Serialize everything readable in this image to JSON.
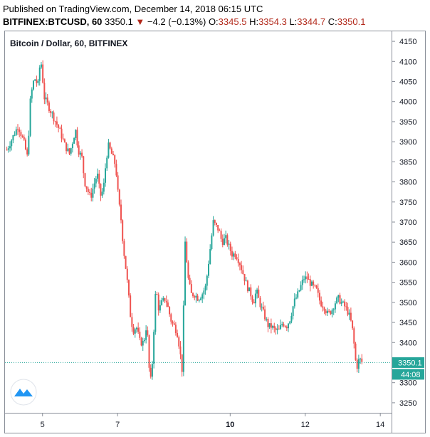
{
  "header": {
    "published": "Published on TradingView.com, December 14, 2018 06:15 UTC",
    "symbol": "BITFINEX:BTCUSD, 60",
    "last": "3350.1",
    "change": "−4.2 (−0.13%)",
    "open_label": "O:",
    "open": "3345.5",
    "high_label": "H:",
    "high": "3354.3",
    "low_label": "L:",
    "low": "3344.7",
    "close_label": "C:",
    "close": "3350.1"
  },
  "pane_title": "Bitcoin / Dollar, 60, BITFINEX",
  "price_badge": "3350.1",
  "countdown_badge": "44:08",
  "icons": {
    "logo": "tradingview-logo-icon",
    "change_arrow": "down-triangle-icon"
  },
  "colors": {
    "up": "#26a69a",
    "down": "#ef5350",
    "last_line": "#26a69a",
    "axis_text": "#131722"
  },
  "chart_data": {
    "type": "candlestick",
    "title": "Bitcoin / Dollar, 60, BITFINEX",
    "x_ticks": [
      {
        "label": "5",
        "day": 5
      },
      {
        "label": "7",
        "day": 7
      },
      {
        "label": "10",
        "day": 10
      },
      {
        "label": "12",
        "day": 12
      },
      {
        "label": "14",
        "day": 14
      }
    ],
    "y_ticks": [
      3250,
      3300,
      3350,
      3400,
      3450,
      3500,
      3550,
      3600,
      3650,
      3700,
      3750,
      3800,
      3850,
      3900,
      3950,
      4000,
      4050,
      4100,
      4150
    ],
    "ylim": [
      3225,
      4175
    ],
    "xlim": [
      4.0,
      14.3
    ],
    "last_price": 3350.1,
    "path": [
      [
        4.05,
        3880
      ],
      [
        4.2,
        3910
      ],
      [
        4.35,
        3940
      ],
      [
        4.5,
        3900
      ],
      [
        4.6,
        3860
      ],
      [
        4.68,
        4010
      ],
      [
        4.78,
        4060
      ],
      [
        4.88,
        4040
      ],
      [
        4.95,
        4110
      ],
      [
        5.05,
        4010
      ],
      [
        5.15,
        3990
      ],
      [
        5.3,
        3960
      ],
      [
        5.45,
        3930
      ],
      [
        5.6,
        3890
      ],
      [
        5.72,
        3870
      ],
      [
        5.8,
        3900
      ],
      [
        5.88,
        3930
      ],
      [
        5.95,
        3880
      ],
      [
        6.05,
        3860
      ],
      [
        6.12,
        3800
      ],
      [
        6.2,
        3780
      ],
      [
        6.28,
        3760
      ],
      [
        6.36,
        3790
      ],
      [
        6.46,
        3820
      ],
      [
        6.54,
        3765
      ],
      [
        6.62,
        3780
      ],
      [
        6.7,
        3860
      ],
      [
        6.76,
        3890
      ],
      [
        6.84,
        3870
      ],
      [
        6.95,
        3840
      ],
      [
        7.02,
        3760
      ],
      [
        7.1,
        3700
      ],
      [
        7.15,
        3640
      ],
      [
        7.25,
        3560
      ],
      [
        7.35,
        3460
      ],
      [
        7.42,
        3430
      ],
      [
        7.5,
        3440
      ],
      [
        7.6,
        3400
      ],
      [
        7.7,
        3400
      ],
      [
        7.78,
        3450
      ],
      [
        7.85,
        3320
      ],
      [
        7.9,
        3300
      ],
      [
        7.96,
        3420
      ],
      [
        8.02,
        3540
      ],
      [
        8.1,
        3480
      ],
      [
        8.18,
        3500
      ],
      [
        8.28,
        3510
      ],
      [
        8.36,
        3480
      ],
      [
        8.44,
        3450
      ],
      [
        8.52,
        3440
      ],
      [
        8.6,
        3420
      ],
      [
        8.66,
        3380
      ],
      [
        8.72,
        3330
      ],
      [
        8.8,
        3650
      ],
      [
        8.88,
        3560
      ],
      [
        8.96,
        3520
      ],
      [
        9.05,
        3520
      ],
      [
        9.15,
        3510
      ],
      [
        9.25,
        3520
      ],
      [
        9.35,
        3540
      ],
      [
        9.45,
        3620
      ],
      [
        9.55,
        3700
      ],
      [
        9.62,
        3690
      ],
      [
        9.7,
        3680
      ],
      [
        9.78,
        3650
      ],
      [
        9.88,
        3660
      ],
      [
        9.96,
        3640
      ],
      [
        10.05,
        3620
      ],
      [
        10.15,
        3620
      ],
      [
        10.25,
        3600
      ],
      [
        10.35,
        3570
      ],
      [
        10.45,
        3540
      ],
      [
        10.55,
        3520
      ],
      [
        10.62,
        3500
      ],
      [
        10.7,
        3530
      ],
      [
        10.78,
        3500
      ],
      [
        10.86,
        3480
      ],
      [
        10.94,
        3460
      ],
      [
        11.02,
        3440
      ],
      [
        11.1,
        3440
      ],
      [
        11.2,
        3430
      ],
      [
        11.3,
        3430
      ],
      [
        11.4,
        3450
      ],
      [
        11.5,
        3440
      ],
      [
        11.6,
        3460
      ],
      [
        11.7,
        3500
      ],
      [
        11.8,
        3520
      ],
      [
        11.88,
        3540
      ],
      [
        11.96,
        3560
      ],
      [
        12.05,
        3560
      ],
      [
        12.12,
        3550
      ],
      [
        12.2,
        3540
      ],
      [
        12.3,
        3530
      ],
      [
        12.4,
        3500
      ],
      [
        12.5,
        3490
      ],
      [
        12.6,
        3470
      ],
      [
        12.7,
        3480
      ],
      [
        12.8,
        3500
      ],
      [
        12.88,
        3510
      ],
      [
        12.96,
        3500
      ],
      [
        13.05,
        3490
      ],
      [
        13.12,
        3480
      ],
      [
        13.2,
        3460
      ],
      [
        13.28,
        3420
      ],
      [
        13.33,
        3360
      ],
      [
        13.38,
        3340
      ],
      [
        13.44,
        3360
      ],
      [
        13.52,
        3350
      ]
    ]
  }
}
